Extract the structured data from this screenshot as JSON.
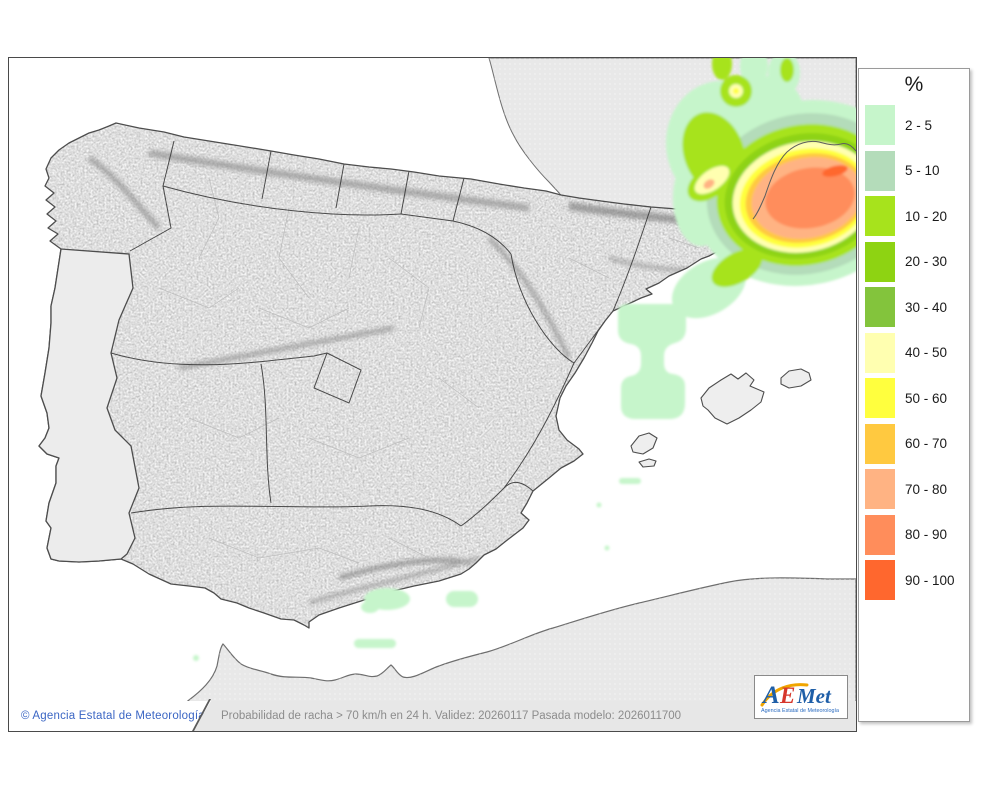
{
  "page": {
    "background": "#ffffff"
  },
  "legend": {
    "title": "%",
    "bins": [
      {
        "label": "2 - 5",
        "color": "#c6f5cb"
      },
      {
        "label": "5 - 10",
        "color": "#b4dcba"
      },
      {
        "label": "10 - 20",
        "color": "#a7e31c"
      },
      {
        "label": "20 - 30",
        "color": "#8ed312"
      },
      {
        "label": "30 - 40",
        "color": "#83c43c"
      },
      {
        "label": "40 - 50",
        "color": "#ffffb0"
      },
      {
        "label": "50 - 60",
        "color": "#ffff3e"
      },
      {
        "label": "60 - 70",
        "color": "#ffc940"
      },
      {
        "label": "70 - 80",
        "color": "#ffb383"
      },
      {
        "label": "80 - 90",
        "color": "#ff8d5b"
      },
      {
        "label": "90 - 100",
        "color": "#ff672e"
      }
    ]
  },
  "map": {
    "colors": {
      "sea": "#ffffff",
      "foreign_land": "#e8e8e8",
      "portugal_land": "#ececec",
      "spain_land": "#f6f6f6",
      "island_land": "#eeeeee",
      "coast_line": "#4d4d4d",
      "foreign_coast_line": "#6e6e6e",
      "community_border": "#3a3a3a",
      "province_border": "#bdbdbd"
    },
    "overlays": [
      {
        "name": "gulf-of-lion-maximum",
        "area": "Mediterranean / Gulf of Lion (NE of map)",
        "max_bin": "80 - 90"
      },
      {
        "name": "southern-france-cluster",
        "area": "Inland southern France",
        "max_bin": "70 - 80"
      },
      {
        "name": "valencia-offshore",
        "area": "Waters off the Valencia coast",
        "max_bin": "2 - 5"
      },
      {
        "name": "alboran-patches",
        "area": "Alboran Sea / southern coast",
        "max_bin": "2 - 5"
      }
    ]
  },
  "footer": {
    "copyright": "© Agencia Estatal de Meteorología",
    "copyright_color": "#3b66c4",
    "caption": "Probabilidad de racha > 70 km/h en 24 h. Validez: 20260117 Pasada modelo: 2026011700",
    "caption_color": "#8c8c8c"
  },
  "logo": {
    "letters": [
      {
        "t": "A",
        "color": "#1f5fa8"
      },
      {
        "t": "E",
        "color": "#d6372c"
      },
      {
        "t": "Met",
        "color": "#1f5fa8"
      }
    ],
    "swoosh_color": "#f0a500",
    "subtitle": "Agencia Estatal de Meteorología",
    "subtitle_color": "#2a6bc0"
  }
}
